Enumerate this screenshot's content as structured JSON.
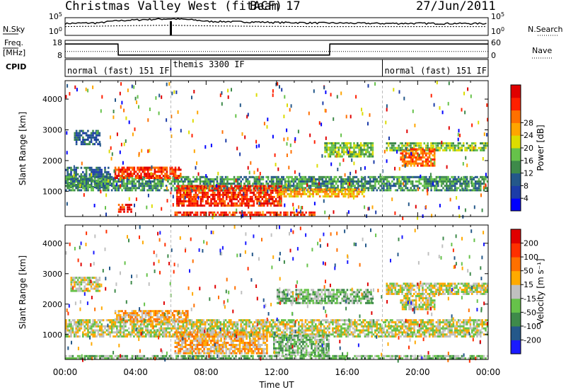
{
  "header": {
    "station": "Christmas Valley West (fitACF)",
    "beam": "Beam 17",
    "date": "27/Jun/2011"
  },
  "chart_data": [
    {
      "type": "line",
      "panel": "noise",
      "left_label": "N.Sky",
      "right_label": "N.Search",
      "left_ticks": [
        "10^5",
        "10^0"
      ],
      "right_ticks": [
        "10^5",
        "10^0"
      ],
      "log_scale": true,
      "ylim": [
        1,
        100000
      ],
      "x": [
        "00:00",
        "02:00",
        "04:00",
        "06:00",
        "08:00",
        "10:00",
        "12:00",
        "14:00",
        "16:00",
        "18:00",
        "20:00",
        "22:00",
        "00:00"
      ],
      "series": [
        {
          "name": "N.Sky",
          "values": [
            2000,
            3000,
            20000,
            40000,
            8000,
            6000,
            4000,
            3000,
            2500,
            2000,
            2200,
            2000,
            2000
          ]
        },
        {
          "name": "N.Search",
          "values": [
            300,
            400,
            600,
            700,
            500,
            400,
            350,
            300,
            300,
            300,
            300,
            300,
            300
          ]
        }
      ]
    },
    {
      "type": "line",
      "panel": "freq_nave",
      "left_label_1": "Freq.",
      "left_label_2": "[MHz]",
      "right_label": "Nave",
      "left_ticks": [
        "18",
        "8"
      ],
      "right_ticks": [
        "60",
        "0"
      ],
      "x": [
        "00:00",
        "03:00",
        "03:01",
        "15:00",
        "15:01",
        "00:00"
      ],
      "series": [
        {
          "name": "Freq.",
          "values": [
            16.5,
            16.5,
            9.0,
            9.0,
            16.5,
            16.5
          ]
        },
        {
          "name": "Nave",
          "values": [
            22,
            22,
            22,
            22,
            22,
            22
          ]
        }
      ]
    },
    {
      "type": "table",
      "panel": "cpid",
      "label": "CPID",
      "segments": [
        {
          "start": "00:00",
          "end": "06:00",
          "text": "normal (fast) 151 IF"
        },
        {
          "start": "06:00",
          "end": "18:00",
          "text": "themis 3300 IF"
        },
        {
          "start": "18:00",
          "end": "00:00",
          "text": "normal (fast) 151 IF"
        }
      ]
    },
    {
      "type": "heatmap",
      "panel": "power",
      "ylabel": "Slant Range [km]",
      "yticks": [
        1000,
        2000,
        3000,
        4000
      ],
      "ylim": [
        180,
        4600
      ],
      "xlim_hours": [
        0,
        24
      ],
      "colorbar": {
        "label": "Power [dB]",
        "ticks": [
          4,
          8,
          12,
          16,
          20,
          24,
          28
        ],
        "colors": [
          "#0000ff",
          "#1c3ca8",
          "#24588a",
          "#3e8a4a",
          "#66c24a",
          "#dcdc00",
          "#ffa500",
          "#ff7000",
          "#ff2000",
          "#e00000"
        ]
      },
      "bands": [
        {
          "t0": 0,
          "t1": 2.6,
          "r0": 1100,
          "r1": 1800,
          "level": 2
        },
        {
          "t0": 0,
          "t1": 24,
          "r0": 1000,
          "r1": 1500,
          "level": 3
        },
        {
          "t0": 2.8,
          "t1": 6.6,
          "r0": 1400,
          "r1": 1800,
          "level": 8
        },
        {
          "t0": 6.3,
          "t1": 12.3,
          "r0": 500,
          "r1": 1200,
          "level": 8
        },
        {
          "t0": 6.2,
          "t1": 14.2,
          "r0": 200,
          "r1": 350,
          "level": 8
        },
        {
          "t0": 12.0,
          "t1": 17.0,
          "r0": 800,
          "r1": 1100,
          "level": 6
        },
        {
          "t0": 14.7,
          "t1": 17.5,
          "r0": 2100,
          "r1": 2600,
          "level": 4
        },
        {
          "t0": 18.2,
          "t1": 24,
          "r0": 2300,
          "r1": 2600,
          "level": 4
        },
        {
          "t0": 0.5,
          "t1": 2.0,
          "r0": 2500,
          "r1": 3000,
          "level": 2
        },
        {
          "t0": 3.0,
          "t1": 3.8,
          "r0": 300,
          "r1": 600,
          "level": 8
        },
        {
          "t0": 19.0,
          "t1": 21.0,
          "r0": 1800,
          "r1": 2400,
          "level": 7
        }
      ]
    },
    {
      "type": "heatmap",
      "panel": "velocity",
      "ylabel": "Slant Range [km]",
      "xlabel": "Time UT",
      "xticks": [
        "00:00",
        "04:00",
        "08:00",
        "12:00",
        "16:00",
        "20:00",
        "00:00"
      ],
      "yticks": [
        1000,
        2000,
        3000,
        4000
      ],
      "ylim": [
        180,
        4600
      ],
      "xlim_hours": [
        0,
        24
      ],
      "colorbar": {
        "label": "Velocity [m s⁻¹]",
        "ticks": [
          200,
          100,
          50,
          15,
          -15,
          -50,
          -100,
          -200
        ],
        "colors": [
          "#1a1aff",
          "#24588a",
          "#3e8a4a",
          "#66c24a",
          "#c0c0c0",
          "#ffaa00",
          "#ff7000",
          "#ff3000",
          "#e00000"
        ]
      },
      "bands": [
        {
          "t0": 0,
          "t1": 24,
          "r0": 900,
          "r1": 1500,
          "level": 4
        },
        {
          "t0": 2.8,
          "t1": 7.0,
          "r0": 1400,
          "r1": 1800,
          "level": 5
        },
        {
          "t0": 6.2,
          "t1": 11.5,
          "r0": 350,
          "r1": 1100,
          "level": 5
        },
        {
          "t0": 11.8,
          "t1": 15.0,
          "r0": 300,
          "r1": 1000,
          "level": 3
        },
        {
          "t0": 0.3,
          "t1": 2.0,
          "r0": 2400,
          "r1": 2900,
          "level": 4
        },
        {
          "t0": 18.2,
          "t1": 24,
          "r0": 2300,
          "r1": 2700,
          "level": 4
        },
        {
          "t0": 19.0,
          "t1": 21.0,
          "r0": 1800,
          "r1": 2300,
          "level": 4
        },
        {
          "t0": 12.0,
          "t1": 17.5,
          "r0": 2000,
          "r1": 2500,
          "level": 3
        },
        {
          "t0": 0,
          "t1": 24,
          "r0": 180,
          "r1": 330,
          "level": 3
        }
      ]
    }
  ]
}
